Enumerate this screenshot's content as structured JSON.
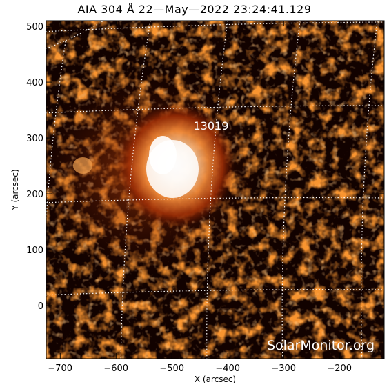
{
  "title": "AIA 304 Å 22—May—2022 23:24:41.129",
  "region_label": "13019",
  "watermark": "SolarMonitor.org",
  "colors": {
    "background": "#000000",
    "hot": "#ffffff",
    "mid": "#c84a0c",
    "low": "#5a0f00",
    "grid": "#ffffff"
  },
  "chart_data": {
    "type": "heatmap",
    "title": "AIA 304 Å 22—May—2022 23:24:41.129",
    "xlabel": "X (arcsec)",
    "ylabel": "Y (arcsec)",
    "xlim": [
      -725,
      -120
    ],
    "ylim": [
      -95,
      510
    ],
    "x_ticks": [
      -700,
      -600,
      -500,
      -400,
      -300,
      -200
    ],
    "y_ticks": [
      0,
      100,
      200,
      300,
      400,
      500
    ],
    "x_tick_labels": [
      "−700",
      "−600",
      "−500",
      "−400",
      "−300",
      "−200"
    ],
    "y_tick_labels": [
      "0",
      "100",
      "200",
      "300",
      "400",
      "500"
    ],
    "grid": "dotted heliographic grid",
    "annotations": [
      {
        "text": "13019",
        "x": -430,
        "y": 315
      }
    ],
    "bright_region_center": {
      "x": -515,
      "y": 235
    }
  }
}
